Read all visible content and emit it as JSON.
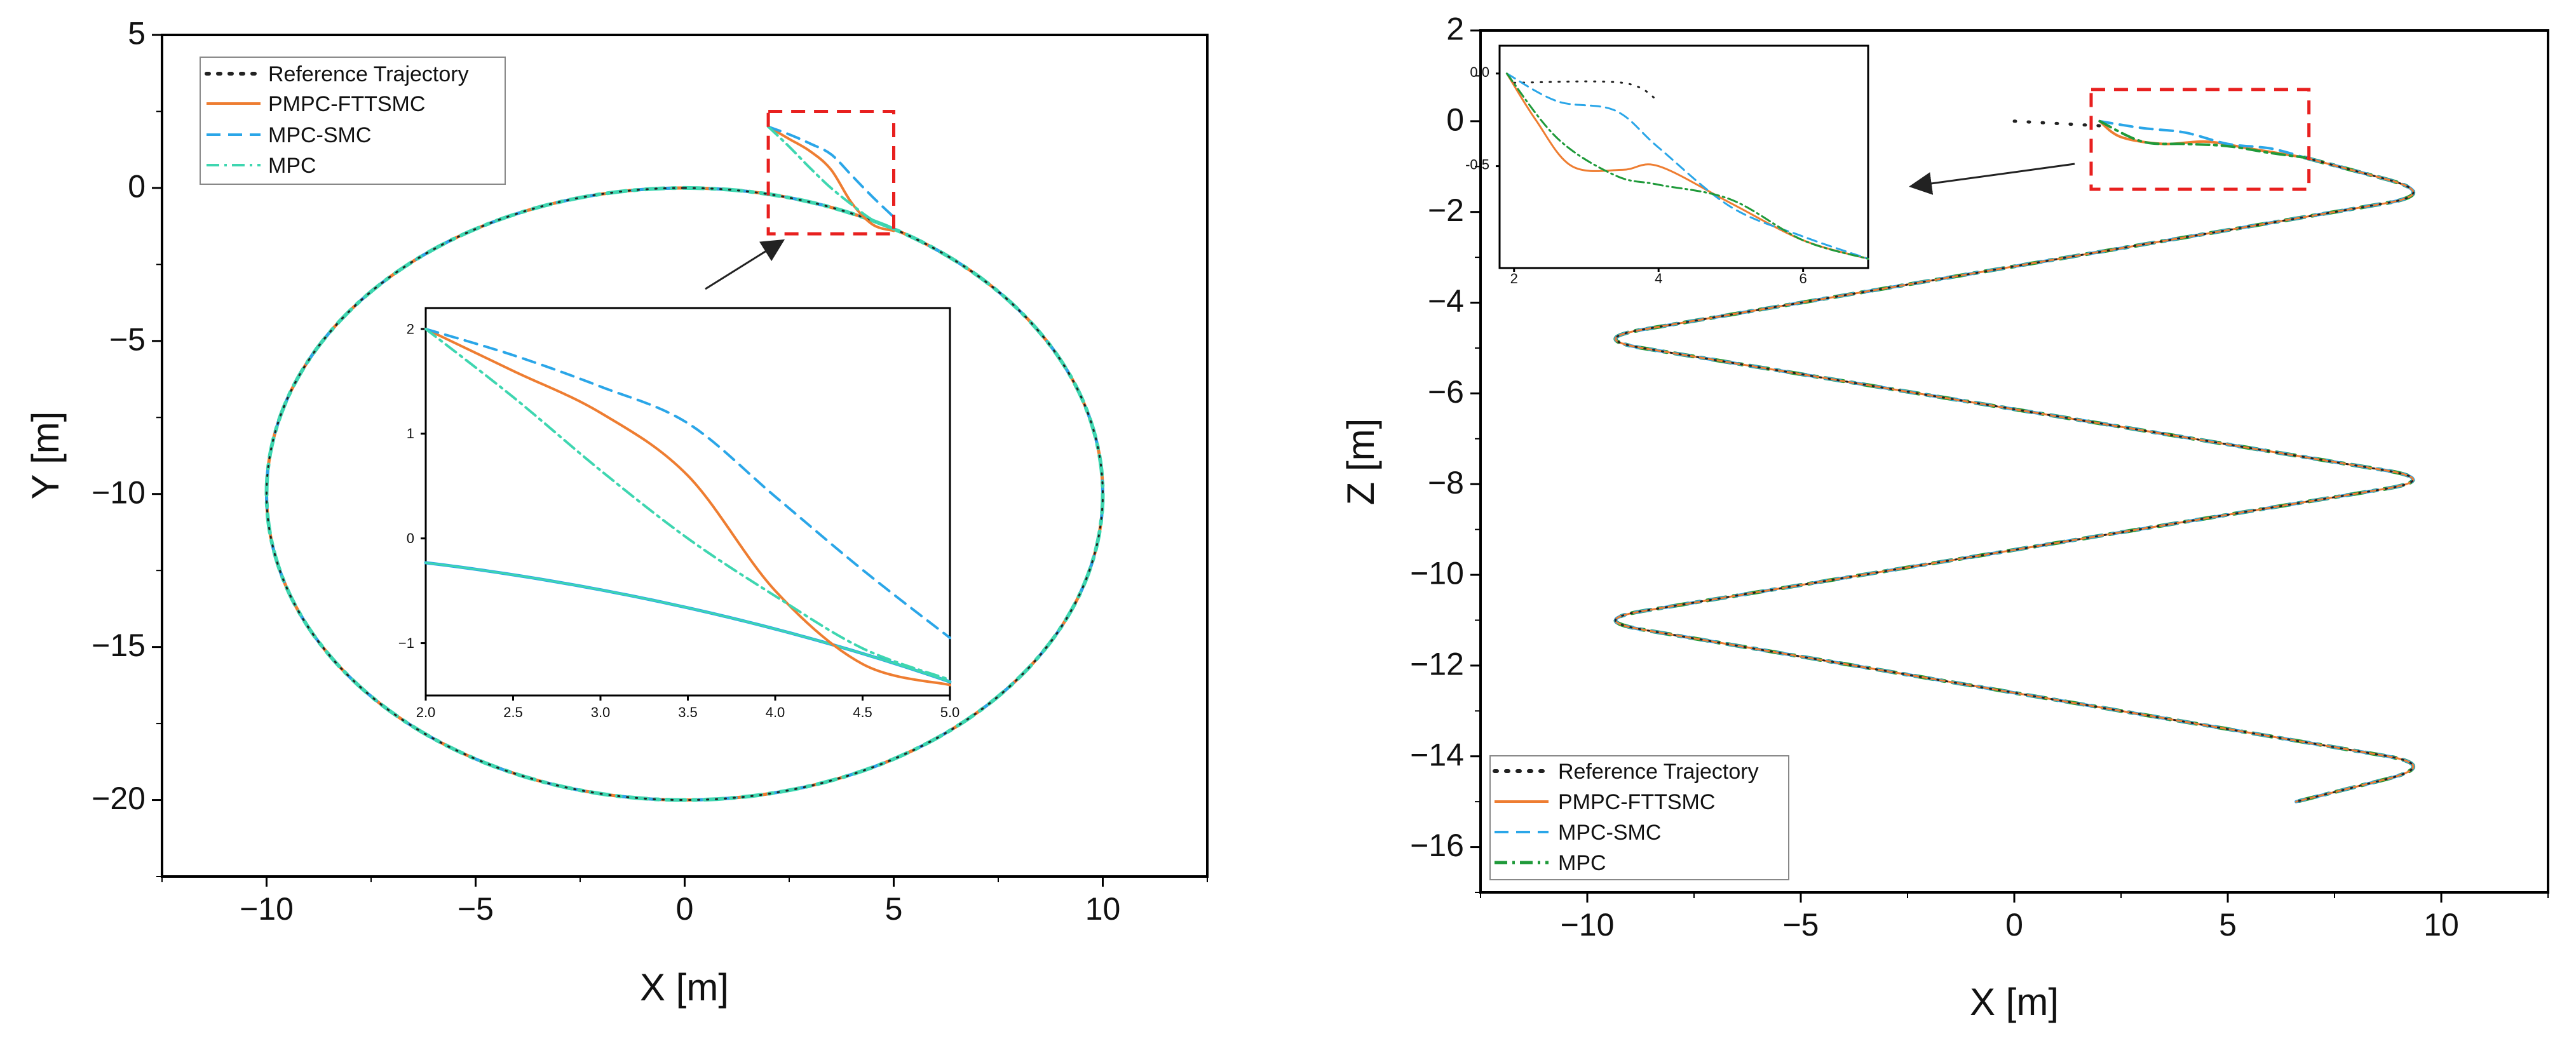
{
  "chart_data": [
    {
      "type": "line",
      "id": "left",
      "title": "",
      "xlabel": "X [m]",
      "ylabel": "Y [m]",
      "xlim": [
        -12.5,
        12.5
      ],
      "ylim": [
        -22.5,
        5
      ],
      "xticks": [
        -10,
        -5,
        0,
        5,
        10
      ],
      "yticks": [
        5,
        0,
        -5,
        -10,
        -15,
        -20
      ],
      "xtick_labels": [
        "−10",
        "−5",
        "0",
        "5",
        "10"
      ],
      "ytick_labels": [
        "5",
        "0",
        "−5",
        "−10",
        "−15",
        "−20"
      ],
      "reference": {
        "shape": "circle",
        "center": [
          0,
          -10
        ],
        "radius": 10
      },
      "series": [
        {
          "name": "Reference Trajectory",
          "style": "dotted",
          "color": "#222222"
        },
        {
          "name": "PMPC-FTTSMC",
          "style": "solid",
          "color": "#ee7d31"
        },
        {
          "name": "MPC-SMC",
          "style": "dashed",
          "color": "#2aa6e8"
        },
        {
          "name": "MPC",
          "style": "dashdot",
          "color": "#3ed6b0"
        }
      ],
      "transients": {
        "PMPC-FTTSMC": [
          [
            2.0,
            2.0
          ],
          [
            2.5,
            1.6
          ],
          [
            3.0,
            1.2
          ],
          [
            3.5,
            0.6
          ],
          [
            4.0,
            -0.5
          ],
          [
            4.5,
            -1.2
          ],
          [
            5.0,
            -1.4
          ]
        ],
        "MPC-SMC": [
          [
            2.0,
            2.0
          ],
          [
            2.5,
            1.75
          ],
          [
            3.0,
            1.45
          ],
          [
            3.5,
            1.1
          ],
          [
            4.0,
            0.4
          ],
          [
            4.5,
            -0.3
          ],
          [
            5.0,
            -0.95
          ]
        ],
        "MPC": [
          [
            2.0,
            2.0
          ],
          [
            2.5,
            1.35
          ],
          [
            3.0,
            0.65
          ],
          [
            3.5,
            0.0
          ],
          [
            4.0,
            -0.55
          ],
          [
            4.5,
            -1.05
          ],
          [
            5.0,
            -1.35
          ]
        ]
      },
      "zoom_box": {
        "x": [
          2,
          5
        ],
        "y": [
          -1.5,
          2.5
        ]
      },
      "inset": {
        "xlim": [
          2.0,
          5.0
        ],
        "ylim": [
          -1.5,
          2.2
        ],
        "xticks": [
          2.0,
          2.5,
          3.0,
          3.5,
          4.0,
          4.5,
          5.0
        ],
        "yticks": [
          2,
          1,
          0,
          -1
        ],
        "xtick_labels": [
          "2.0",
          "2.5",
          "3.0",
          "3.5",
          "4.0",
          "4.5",
          "5.0"
        ],
        "ytick_labels": [
          "2",
          "1",
          "0",
          "−1"
        ]
      },
      "legend_location": "top-left"
    },
    {
      "type": "line",
      "id": "right",
      "title": "",
      "xlabel": "X [m]",
      "ylabel": "Z [m]",
      "xlim": [
        -12.5,
        12.5
      ],
      "ylim": [
        -17,
        2
      ],
      "xticks": [
        -10,
        -5,
        0,
        5,
        10
      ],
      "yticks": [
        2,
        0,
        -2,
        -4,
        -6,
        -8,
        -10,
        -12,
        -14,
        -16
      ],
      "xtick_labels": [
        "−10",
        "−5",
        "0",
        "5",
        "10"
      ],
      "ytick_labels": [
        "2",
        "0",
        "−2",
        "−4",
        "−6",
        "−8",
        "−10",
        "−12",
        "−14",
        "−16"
      ],
      "series": [
        {
          "name": "Reference Trajectory",
          "style": "dotted",
          "color": "#222222"
        },
        {
          "name": "PMPC-FTTSMC",
          "style": "solid",
          "color": "#ee7d31"
        },
        {
          "name": "MPC-SMC",
          "style": "dashed",
          "color": "#2aa6e8"
        },
        {
          "name": "MPC",
          "style": "dashdot",
          "color": "#1f9a3a"
        }
      ],
      "main_path": [
        [
          6.8,
          -0.8
        ],
        [
          10.0,
          -1.6
        ],
        [
          -10.0,
          -4.8
        ],
        [
          10.0,
          -7.9
        ],
        [
          -10.0,
          -11.0
        ],
        [
          10.0,
          -14.2
        ],
        [
          6.6,
          -15.0
        ]
      ],
      "transients": {
        "Reference Trajectory": [
          [
            0.0,
            0.0
          ],
          [
            1.0,
            -0.05
          ],
          [
            2.0,
            -0.1
          ]
        ],
        "PMPC-FTTSMC": [
          [
            2.0,
            0.0
          ],
          [
            2.5,
            -0.35
          ],
          [
            3.5,
            -0.5
          ],
          [
            4.5,
            -0.45
          ],
          [
            5.5,
            -0.6
          ],
          [
            6.8,
            -0.8
          ]
        ],
        "MPC-SMC": [
          [
            2.0,
            0.0
          ],
          [
            3.0,
            -0.15
          ],
          [
            4.0,
            -0.25
          ],
          [
            5.0,
            -0.5
          ],
          [
            6.0,
            -0.6
          ],
          [
            6.8,
            -0.8
          ]
        ],
        "MPC": [
          [
            2.0,
            0.0
          ],
          [
            3.0,
            -0.45
          ],
          [
            4.0,
            -0.5
          ],
          [
            5.0,
            -0.55
          ],
          [
            6.0,
            -0.7
          ],
          [
            6.8,
            -0.8
          ]
        ]
      },
      "zoom_box": {
        "x": [
          1.8,
          6.9
        ],
        "y": [
          -1.5,
          0.7
        ]
      },
      "inset": {
        "xlim": [
          1.8,
          6.9
        ],
        "ylim": [
          -1.05,
          0.15
        ],
        "xticks": [
          2,
          4,
          6
        ],
        "yticks": [
          0.0,
          -0.5
        ],
        "xtick_labels": [
          "2",
          "4",
          "6"
        ],
        "ytick_labels": [
          "0.0",
          "-0.5"
        ]
      },
      "legend_location": "bottom-left"
    }
  ]
}
